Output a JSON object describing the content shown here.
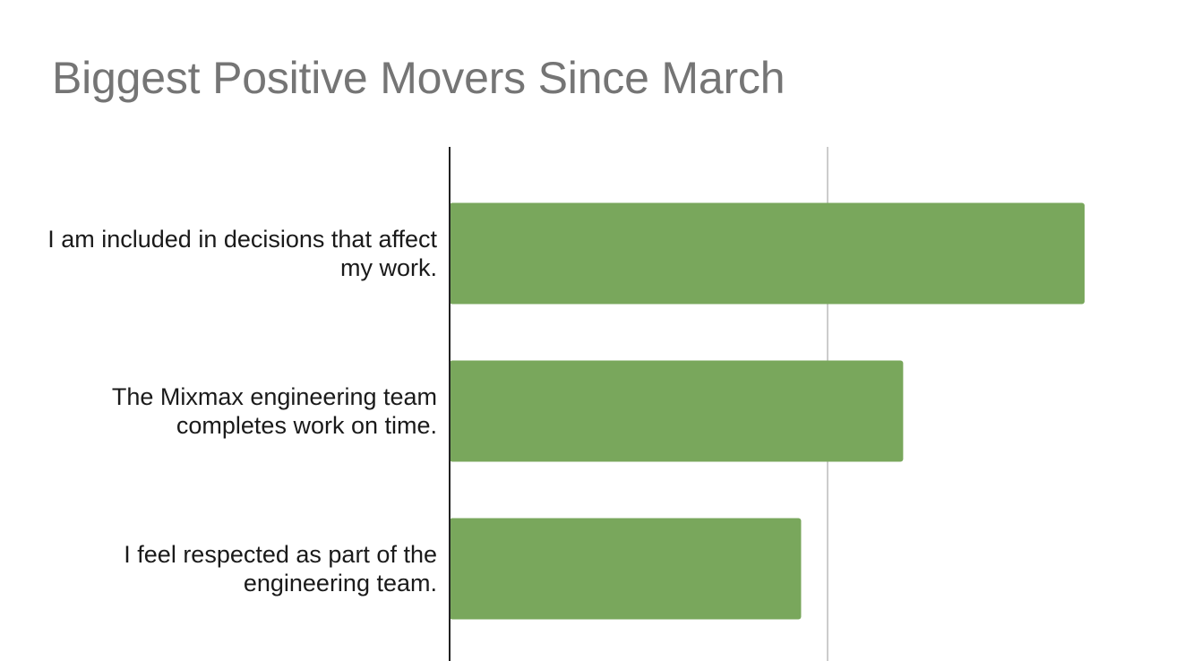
{
  "chart_data": {
    "type": "bar",
    "orientation": "horizontal",
    "title": "Biggest Positive Movers Since March",
    "categories": [
      "I am included in decisions that affect my work.",
      "The Mixmax engineering team completes work on time.",
      "I feel respected as part of the engineering team."
    ],
    "values": [
      1.68,
      1.2,
      0.93
    ],
    "xlim": [
      0,
      2
    ],
    "gridlines_x": [
      1
    ],
    "grid": true,
    "show_tick_labels": false,
    "legend": "none",
    "bar_color": "#79a75c",
    "axis_color": "#222222",
    "grid_color": "#cccccc"
  }
}
